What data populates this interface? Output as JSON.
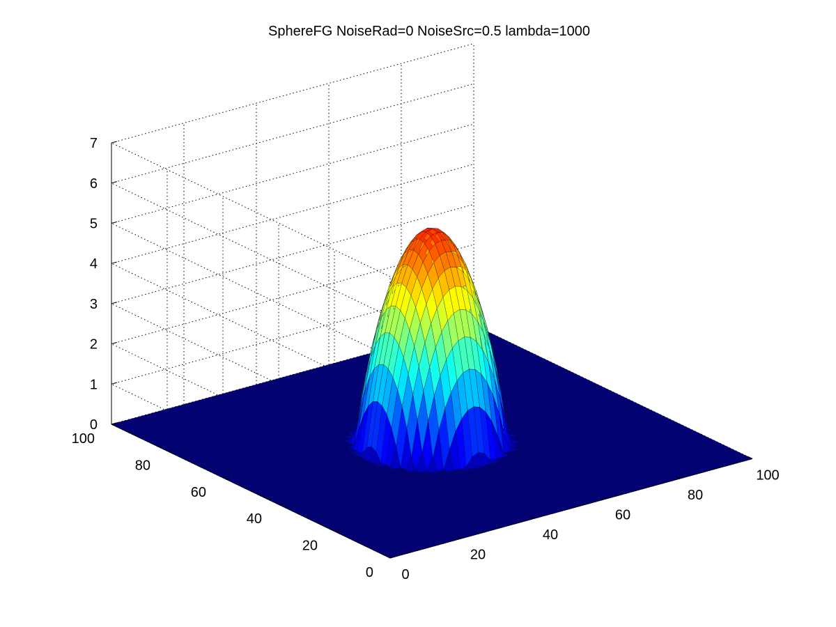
{
  "chart_data": {
    "type": "surface",
    "title": "SphereFG NoiseRad=0 NoiseSrc=0.5 lambda=1000",
    "xlabel": "",
    "ylabel": "",
    "zlabel": "",
    "xlim": [
      0,
      100
    ],
    "ylim": [
      0,
      100
    ],
    "zlim": [
      0,
      7
    ],
    "x_ticks": [
      0,
      20,
      40,
      60,
      80,
      100
    ],
    "y_ticks": [
      0,
      20,
      40,
      60,
      80,
      100
    ],
    "z_ticks": [
      0,
      1,
      2,
      3,
      4,
      5,
      6,
      7
    ],
    "grid": true,
    "colormap": "jet",
    "surface": {
      "description": "dome over a circular disk, flat zero plane elsewhere",
      "center": [
        50,
        50
      ],
      "radius": 17,
      "peak": 5.3,
      "base": 0
    }
  }
}
